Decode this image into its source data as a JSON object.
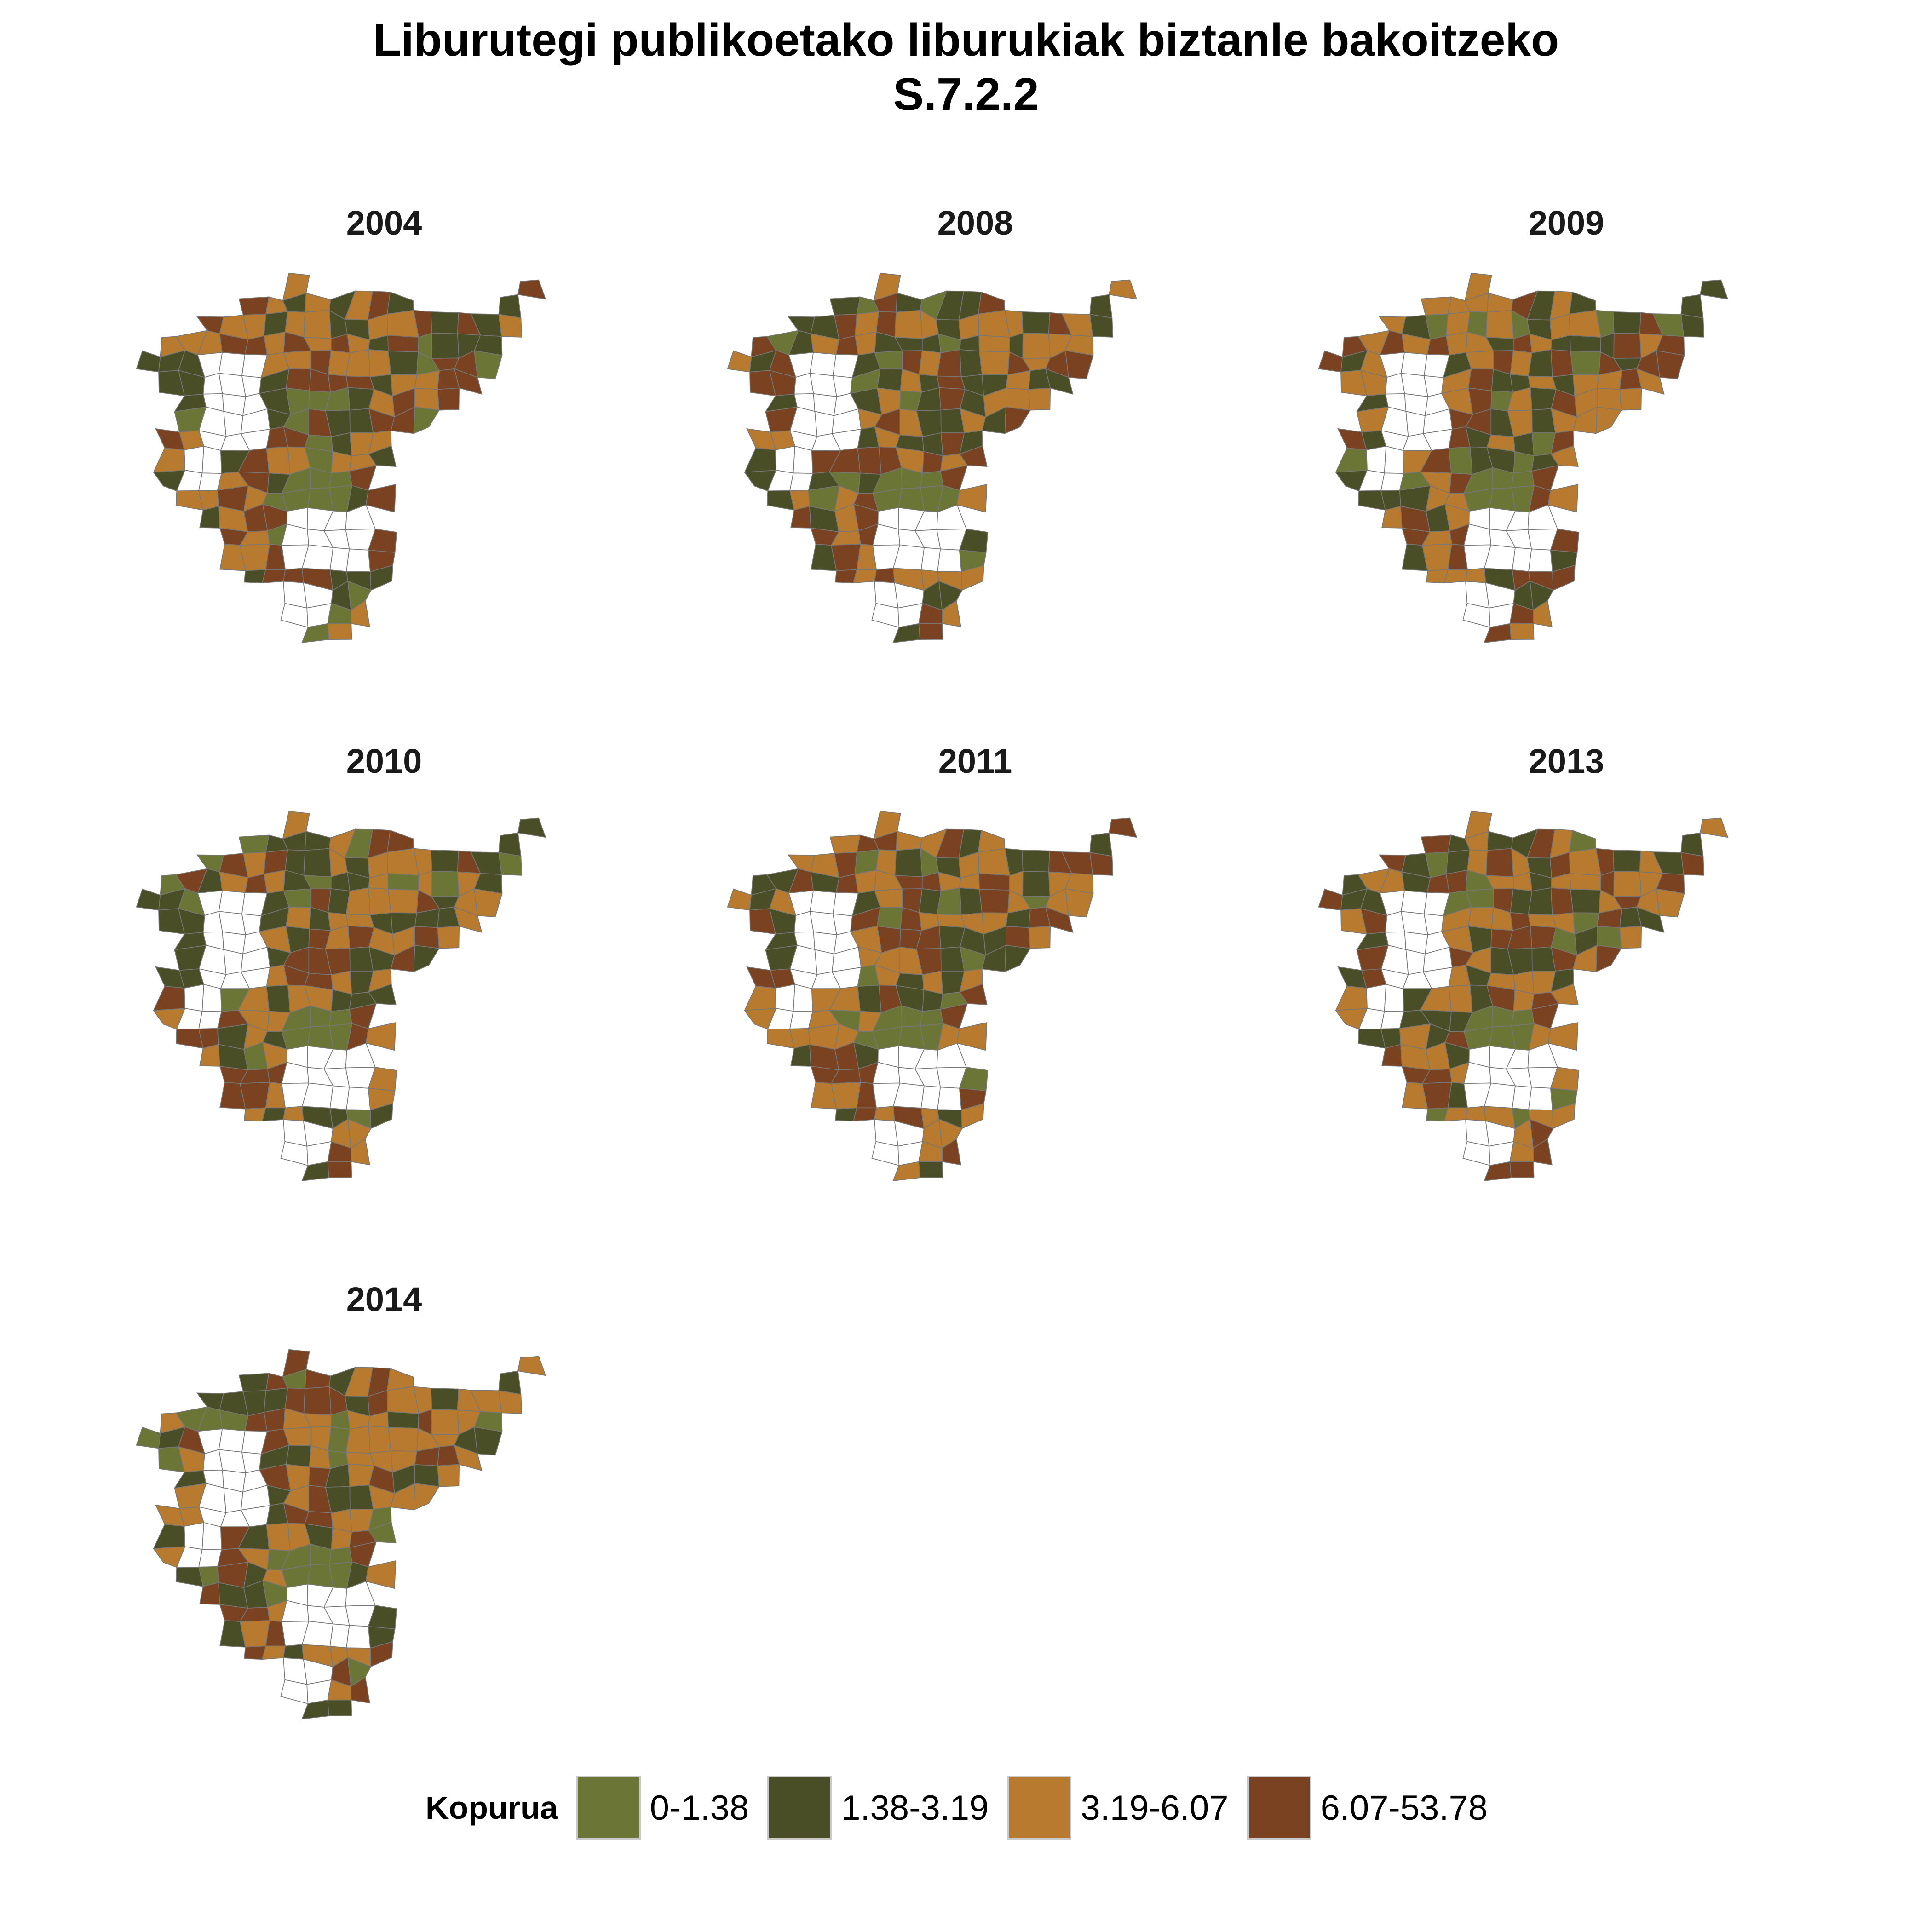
{
  "title": {
    "line1": "Liburutegi publikoetako liburukiak biztanle bakoitzeko",
    "line2": "S.7.2.2"
  },
  "legend": {
    "title": "Kopurua",
    "items": [
      {
        "label": "0-1.38",
        "color": "#6b7535"
      },
      {
        "label": "1.38-3.19",
        "color": "#4a4e26"
      },
      {
        "label": "3.19-6.07",
        "color": "#b87a2e"
      },
      {
        "label": "6.07-53.78",
        "color": "#7a4220"
      }
    ],
    "missing_color": "#ffffff",
    "border_color": "#777777"
  },
  "panels": [
    {
      "year": "2004"
    },
    {
      "year": "2008"
    },
    {
      "year": "2009"
    },
    {
      "year": "2010"
    },
    {
      "year": "2011"
    },
    {
      "year": "2013"
    },
    {
      "year": "2014"
    }
  ]
}
